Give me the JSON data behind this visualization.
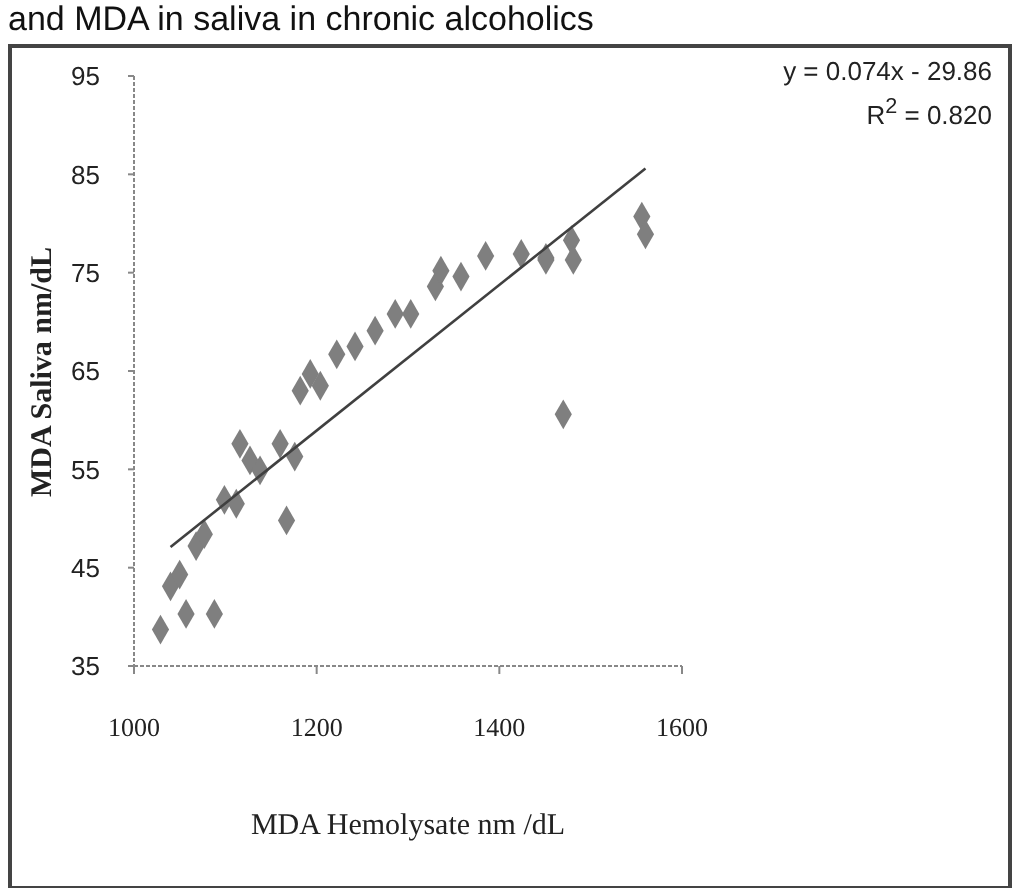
{
  "chart_data": {
    "type": "scatter",
    "title": "and MDA in saliva in chronic alcoholics",
    "xlabel": "MDA Hemolysate nm /dL",
    "ylabel": "MDA Saliva nm/dL",
    "annotations": [
      "y = 0.074x - 29.86",
      "R$^{2}$ = 0.820"
    ],
    "xlim": [
      1000,
      1600
    ],
    "xticks": [
      1000,
      1200,
      1400,
      1600
    ],
    "ylim": [
      35,
      95
    ],
    "yticks": [
      35,
      45,
      55,
      65,
      75,
      85,
      95
    ],
    "marker": "diamond",
    "series": [
      {
        "color": "#7f7f7f",
        "x": [
          1029,
          1040,
          1050,
          1057,
          1068,
          1077,
          1088,
          1099,
          1112,
          1116,
          1127,
          1138,
          1160,
          1167,
          1176,
          1182,
          1193,
          1204,
          1222,
          1242,
          1264,
          1286,
          1303,
          1330,
          1336,
          1358,
          1385,
          1424,
          1451,
          1451,
          1479,
          1481,
          1470,
          1556,
          1560
        ],
        "values": [
          38.7,
          43.1,
          44.3,
          40.3,
          47.2,
          48.4,
          40.3,
          51.9,
          51.5,
          57.6,
          55.9,
          54.9,
          57.6,
          49.8,
          56.3,
          63.0,
          64.7,
          63.5,
          66.7,
          67.5,
          69.1,
          70.8,
          70.8,
          73.6,
          75.2,
          74.6,
          76.7,
          76.9,
          76.5,
          76.3,
          78.3,
          76.3,
          60.6,
          80.7,
          78.9
        ]
      },
      {
        "type": "line",
        "marker": "none",
        "color": "#404040",
        "x": [
          1040,
          1560
        ],
        "values": [
          47.1,
          85.6
        ]
      }
    ]
  }
}
